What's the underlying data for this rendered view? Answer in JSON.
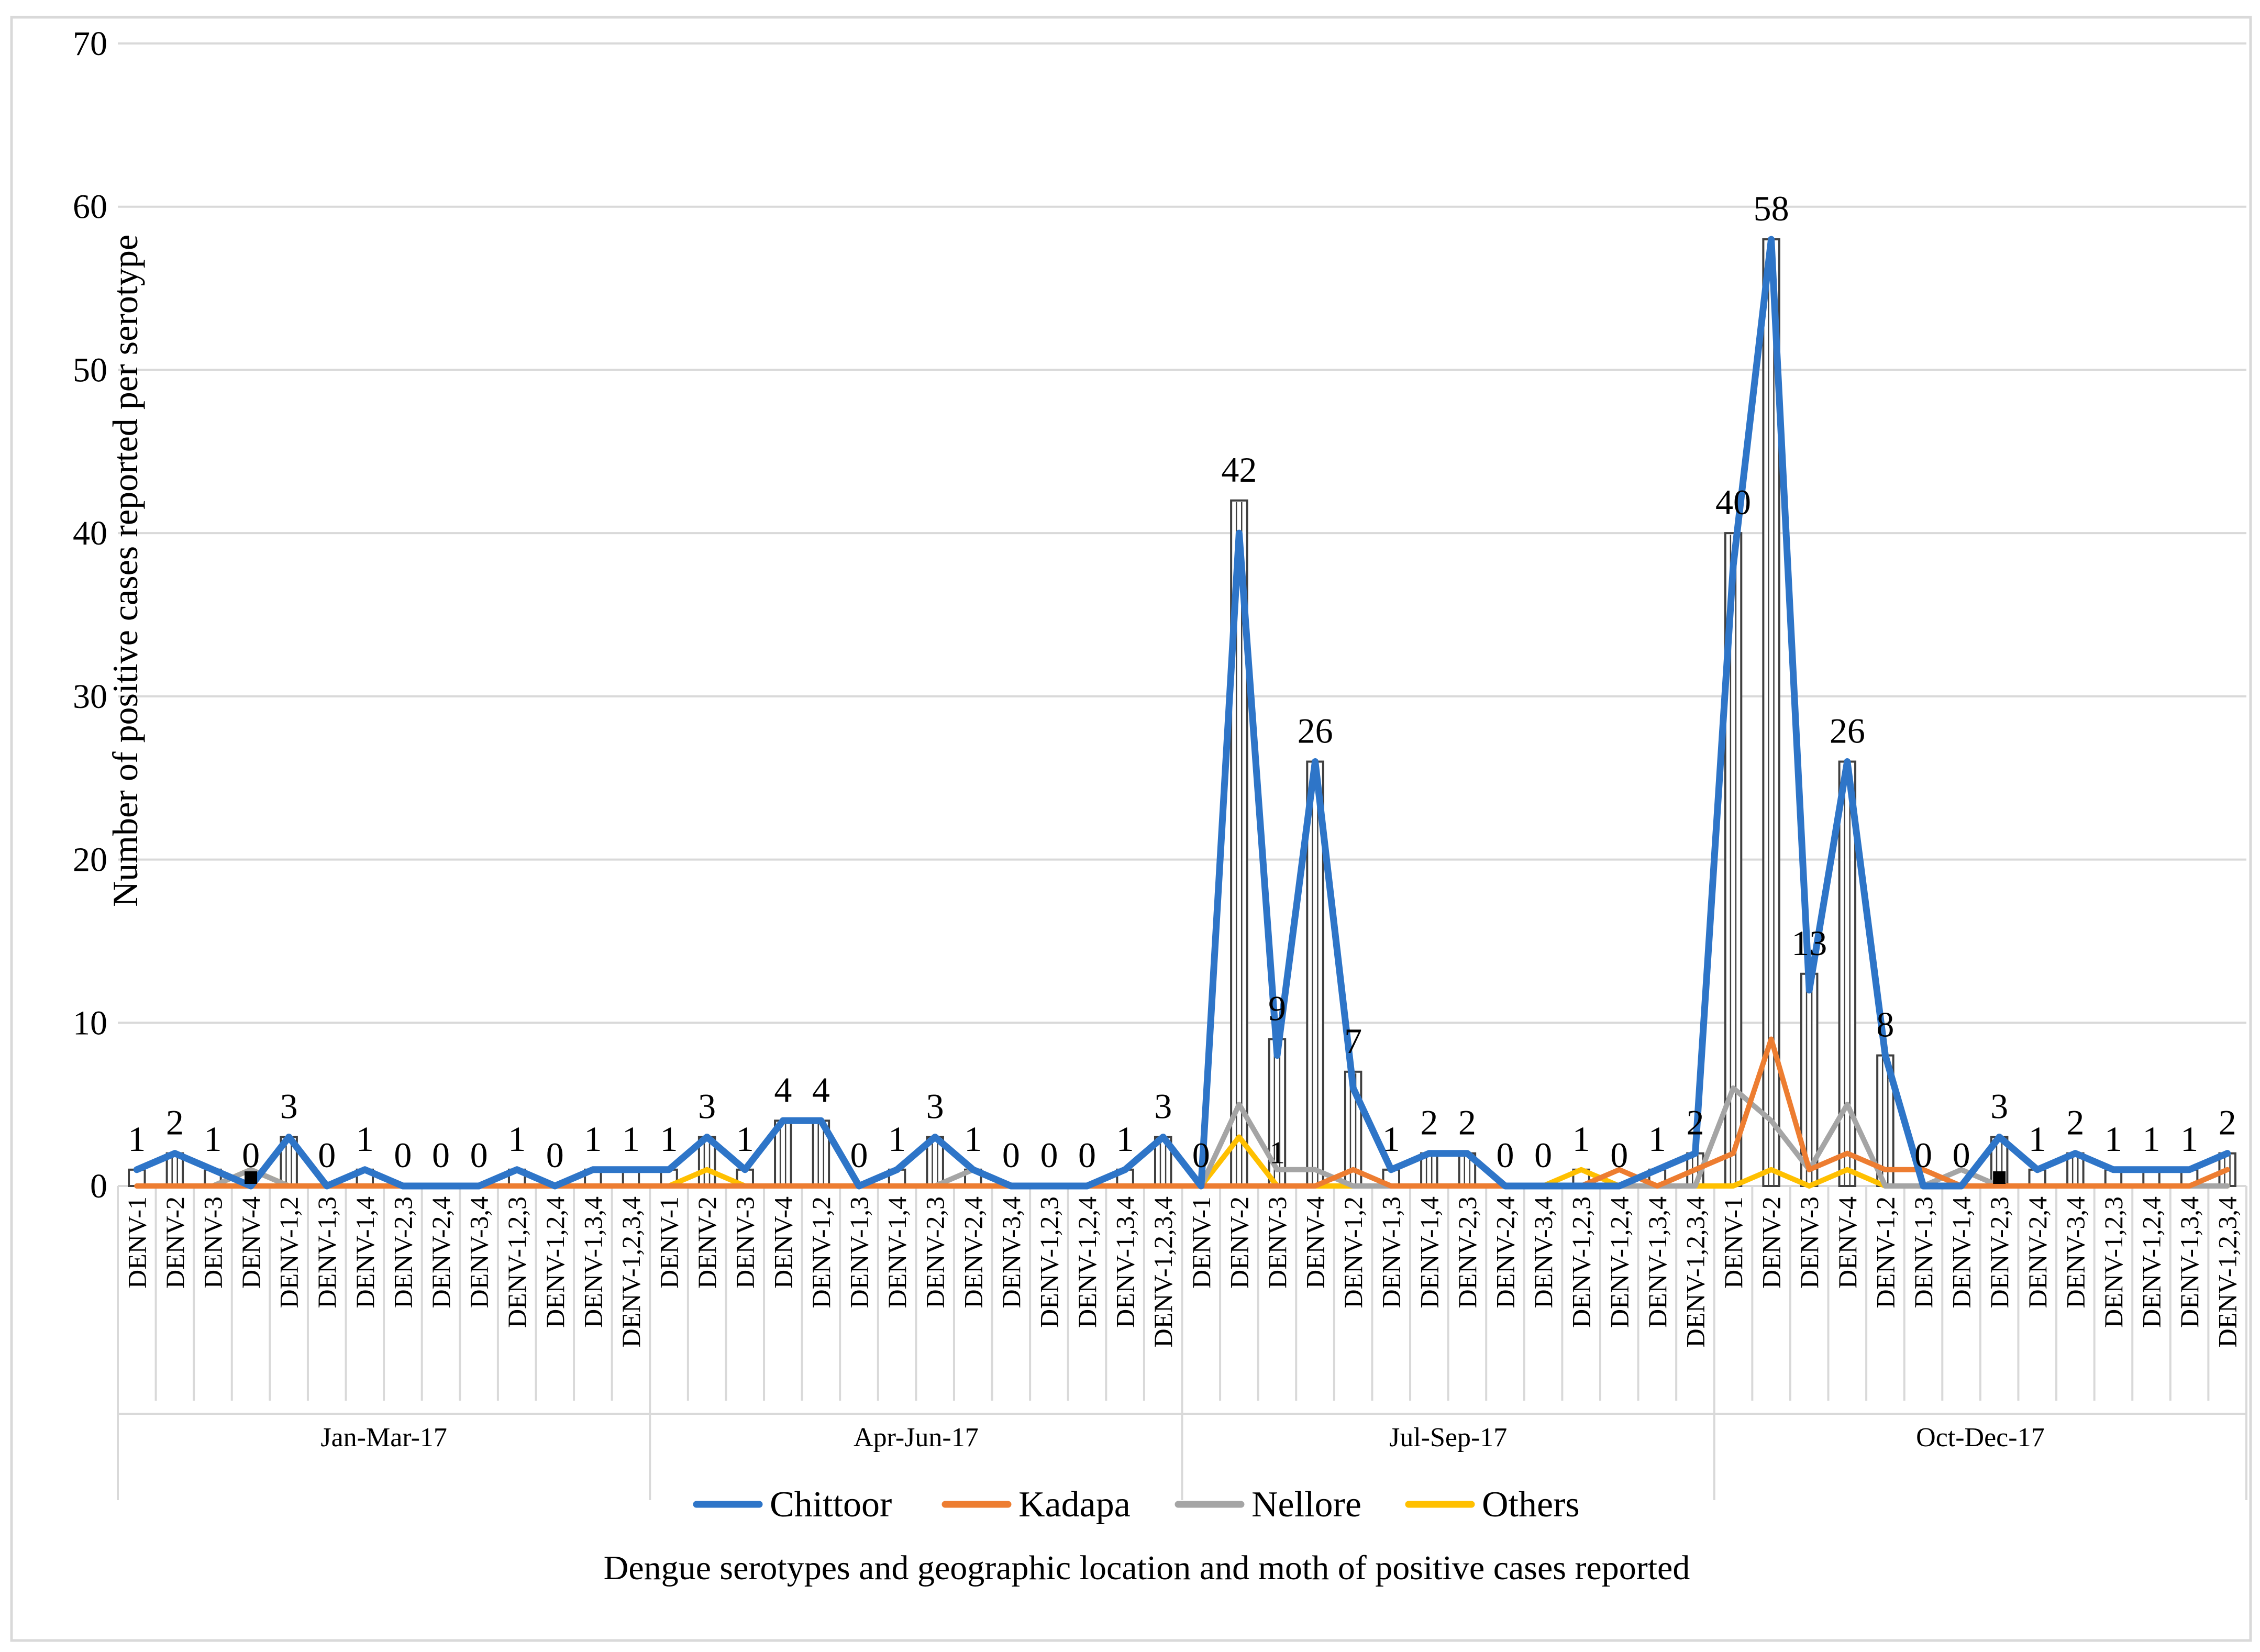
{
  "chart_data": {
    "type": "bar+line",
    "title": "",
    "ylabel": "Number of positive cases reported per serotype",
    "xlabel": "Dengue serotypes and geographic location and moth of positive cases reported",
    "ylim": [
      0,
      70
    ],
    "yticks": [
      0,
      10,
      20,
      30,
      40,
      50,
      60,
      70
    ],
    "gridlines": true,
    "legend_position": "bottom",
    "quarters": [
      "Jan-Mar-17",
      "Apr-Jun-17",
      "Jul-Sep-17",
      "Oct-Dec-17"
    ],
    "serotypes": [
      "DENV-1",
      "DENV-2",
      "DENV-3",
      "DENV-4",
      "DENV-1,2",
      "DENV-1,3",
      "DENV-1,4",
      "DENV-2,3",
      "DENV-2,4",
      "DENV-3,4",
      "DENV-1,2,3",
      "DENV-1,2,4",
      "DENV-1,3,4",
      "DENV-1,2,3,4"
    ],
    "totals": [
      1,
      2,
      1,
      0,
      3,
      0,
      1,
      0,
      0,
      0,
      1,
      0,
      1,
      1,
      1,
      3,
      1,
      4,
      4,
      0,
      1,
      3,
      1,
      0,
      0,
      0,
      1,
      3,
      0,
      42,
      9,
      26,
      7,
      1,
      2,
      2,
      0,
      0,
      1,
      0,
      1,
      2,
      40,
      58,
      13,
      26,
      8,
      0,
      0,
      3,
      1,
      2,
      1,
      1,
      1,
      2
    ],
    "total_labels": [
      "1",
      "2",
      "1",
      "0",
      "3",
      "0",
      "1",
      "0",
      "0",
      "0",
      "1",
      "0",
      "1",
      "1",
      "1",
      "3",
      "1",
      "4",
      "4",
      "0",
      "1",
      "3",
      "1",
      "0",
      "0",
      "0",
      "1",
      "3",
      "0",
      "42",
      "9",
      "26",
      "7",
      "1",
      "2",
      "2",
      "0",
      "0",
      "1",
      "0",
      "1",
      "2",
      "40",
      "58",
      "13",
      "26",
      "8",
      "0",
      "0",
      "3",
      "1",
      "2",
      "1",
      "1",
      "1",
      "2"
    ],
    "extra_labels": [
      {
        "index": 30,
        "text": "1"
      }
    ],
    "series": [
      {
        "name": "Chittoor",
        "color": "#2E75C8",
        "values": [
          1,
          2,
          1,
          0,
          3,
          0,
          1,
          0,
          0,
          0,
          1,
          0,
          1,
          1,
          1,
          3,
          1,
          4,
          4,
          0,
          1,
          3,
          1,
          0,
          0,
          0,
          1,
          3,
          0,
          40,
          8,
          26,
          6,
          1,
          2,
          2,
          0,
          0,
          0,
          0,
          1,
          2,
          38,
          58,
          12,
          26,
          8,
          0,
          0,
          3,
          1,
          2,
          1,
          1,
          1,
          2
        ]
      },
      {
        "name": "Kadapa",
        "color": "#ED7D31",
        "values": [
          0,
          0,
          0,
          0,
          0,
          0,
          0,
          0,
          0,
          0,
          0,
          0,
          0,
          0,
          0,
          0,
          0,
          0,
          0,
          0,
          0,
          0,
          0,
          0,
          0,
          0,
          0,
          0,
          0,
          0,
          0,
          0,
          1,
          0,
          0,
          0,
          0,
          0,
          0,
          1,
          0,
          1,
          2,
          9,
          1,
          2,
          1,
          1,
          0,
          0,
          0,
          0,
          0,
          0,
          0,
          1
        ]
      },
      {
        "name": "Nellore",
        "color": "#A5A5A5",
        "values": [
          0,
          0,
          0,
          1,
          0,
          0,
          1,
          0,
          0,
          0,
          0,
          0,
          0,
          0,
          0,
          0,
          0,
          0,
          0,
          0,
          0,
          0,
          1,
          0,
          0,
          0,
          0,
          0,
          0,
          5,
          1,
          1,
          0,
          0,
          0,
          0,
          0,
          0,
          0,
          0,
          0,
          0,
          6,
          4,
          1,
          5,
          0,
          0,
          1,
          0,
          0,
          0,
          0,
          0,
          0,
          0
        ]
      },
      {
        "name": "Others",
        "color": "#FFC000",
        "values": [
          0,
          0,
          0,
          1,
          0,
          0,
          0,
          0,
          0,
          0,
          0,
          0,
          0,
          0,
          0,
          1,
          0,
          0,
          0,
          0,
          0,
          0,
          0,
          0,
          0,
          0,
          0,
          0,
          0,
          3,
          0,
          0,
          0,
          0,
          0,
          0,
          0,
          0,
          1,
          0,
          0,
          0,
          0,
          1,
          0,
          1,
          0,
          0,
          0,
          0,
          0,
          0,
          0,
          0,
          0,
          0
        ]
      }
    ],
    "zero_markers": [
      3,
      49
    ]
  }
}
